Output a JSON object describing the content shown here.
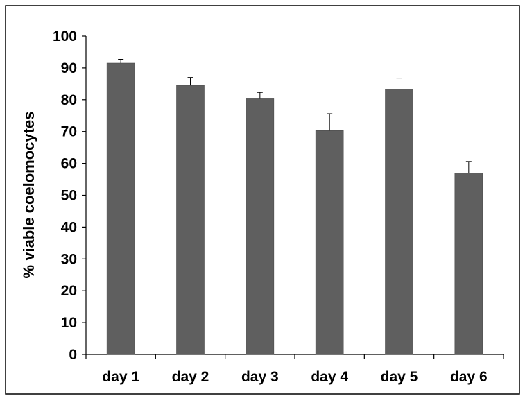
{
  "chart_data": {
    "type": "bar",
    "title": "",
    "xlabel": "",
    "ylabel": "% viable coelomocytes",
    "categories": [
      "day 1",
      "day 2",
      "day 3",
      "day 4",
      "day 5",
      "day 6"
    ],
    "series": [
      {
        "values": [
          91.5,
          84.5,
          80.3,
          70.3,
          83.3,
          57.0
        ],
        "errors": [
          1.2,
          2.5,
          2.0,
          5.3,
          3.5,
          3.6
        ]
      }
    ],
    "ylim": [
      0,
      100
    ],
    "yticks": [
      "0",
      "10",
      "20",
      "30",
      "40",
      "50",
      "60",
      "70",
      "80",
      "90",
      "100"
    ],
    "grid": false,
    "legend": "none",
    "bar_color": "#5f5f5f",
    "error_bar": "upper whisker"
  }
}
